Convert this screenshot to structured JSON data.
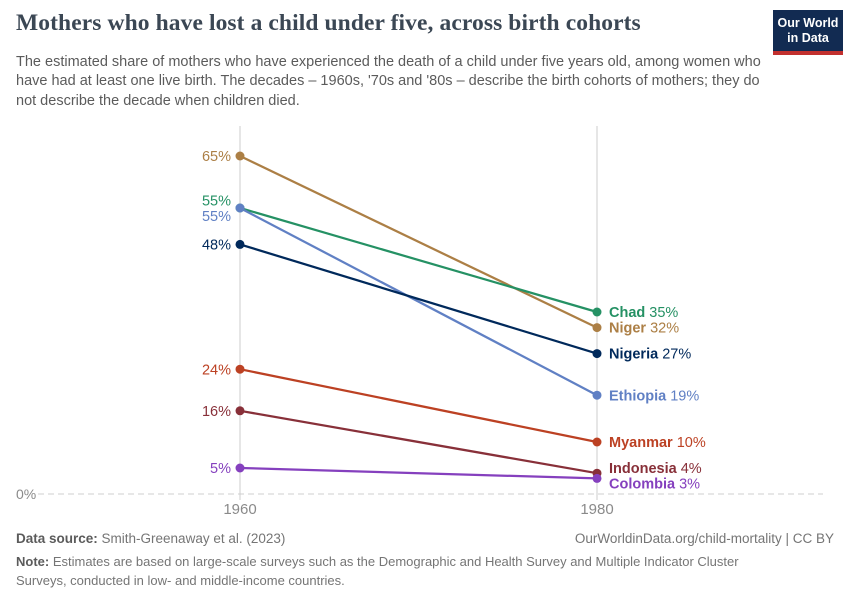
{
  "header": {
    "title": "Mothers who have lost a child under five, across birth cohorts",
    "subtitle": "The estimated share of mothers who have experienced the death of a child under five years old, among women who have had at least one live birth. The decades – 1960s, '70s and '80s – describe the birth cohorts of mothers; they do not describe the decade when children died.",
    "logo": {
      "line1": "Our World",
      "line2": "in Data",
      "bg_color": "#122b52",
      "stripe_color": "#c2302e"
    }
  },
  "chart_data": {
    "type": "line",
    "subtype": "slope",
    "x": [
      1960,
      1980
    ],
    "x_tick_labels": [
      "1960",
      "1980"
    ],
    "series": [
      {
        "name": "Niger",
        "values": [
          65,
          32
        ],
        "color": "#ac7f45"
      },
      {
        "name": "Chad",
        "values": [
          55,
          35
        ],
        "color": "#259164"
      },
      {
        "name": "Ethiopia",
        "values": [
          55,
          19
        ],
        "color": "#6080c4"
      },
      {
        "name": "Nigeria",
        "values": [
          48,
          27
        ],
        "color": "#00295b"
      },
      {
        "name": "Myanmar",
        "values": [
          24,
          10
        ],
        "color": "#bc4123"
      },
      {
        "name": "Indonesia",
        "values": [
          16,
          4
        ],
        "color": "#883039"
      },
      {
        "name": "Colombia",
        "values": [
          5,
          3
        ],
        "color": "#8540be"
      }
    ],
    "value_suffix": "%",
    "baseline_value": 0,
    "baseline_label": "0%",
    "ylim": [
      0,
      70
    ],
    "grid": false,
    "legend_position": "right-inline",
    "axis_color": "#cccccc",
    "tick_label_color": "#8a8a8a"
  },
  "footer": {
    "source_label": "Data source:",
    "source_value": " Smith-Greenaway et al. (2023)",
    "link": "OurWorldinData.org/child-mortality | CC BY",
    "note_label": "Note:",
    "note_value": " Estimates are based on large-scale surveys such as the Demographic and Health Survey and Multiple Indicator Cluster Surveys, conducted in low- and middle-income countries."
  }
}
